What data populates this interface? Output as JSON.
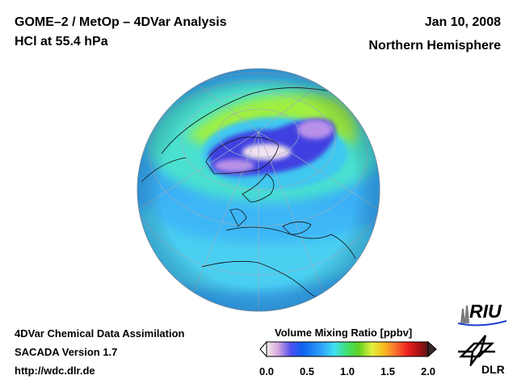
{
  "header": {
    "title_line1": "GOME–2 / MetOp – 4DVar Analysis",
    "title_line2": "HCl at 55.4 hPa",
    "date": "Jan 10, 2008",
    "region": "Northern Hemisphere"
  },
  "footer": {
    "line1": "4DVar Chemical Data Assimilation",
    "line2": "SACADA Version 1.7",
    "url": "http://wdc.dlr.de"
  },
  "colorbar": {
    "label": "Volume Mixing Ratio [ppbv]",
    "ticks": [
      "0.0",
      "0.5",
      "1.0",
      "1.5",
      "2.0"
    ],
    "range": [
      0.0,
      2.0
    ],
    "colors": [
      "#f4ece8",
      "#d8a8e0",
      "#5050f0",
      "#1060f0",
      "#30a0f8",
      "#40e0f0",
      "#40e070",
      "#40d020",
      "#e0f040",
      "#f8c020",
      "#f87030",
      "#f02020",
      "#c01010",
      "#501818"
    ]
  },
  "logos": {
    "riu": "RIU",
    "dlr": "DLR"
  }
}
